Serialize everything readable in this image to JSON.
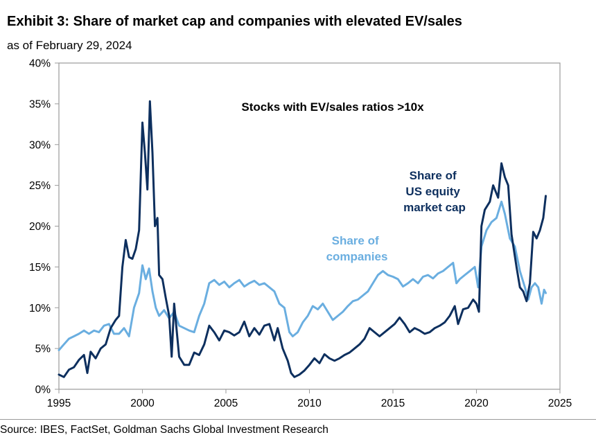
{
  "header": {
    "title": "Exhibit 3: Share of market cap and companies with elevated EV/sales",
    "subtitle": "as of February 29, 2024"
  },
  "footer": {
    "source": "Source: IBES, FactSet, Goldman Sachs Global Investment Research"
  },
  "colors": {
    "market_cap": "#0d2f5e",
    "companies": "#6aaee0",
    "frame": "#9a9a9a"
  },
  "chart_data": {
    "type": "line",
    "title": "Stocks with EV/sales ratios >10x",
    "xlabel": "",
    "ylabel": "",
    "xlim": [
      1995,
      2025
    ],
    "ylim": [
      0,
      40
    ],
    "x_ticks": [
      "1995",
      "2000",
      "2005",
      "2010",
      "2015",
      "2020",
      "2025"
    ],
    "y_ticks": [
      "0%",
      "5%",
      "10%",
      "15%",
      "20%",
      "25%",
      "30%",
      "35%",
      "40%"
    ],
    "grid": false,
    "legend": "inline labels",
    "series": [
      {
        "name": "Share of US equity market cap",
        "label_lines": [
          "Share of",
          "US equity",
          "market cap"
        ],
        "points": [
          [
            1995.0,
            1.8
          ],
          [
            1995.3,
            1.5
          ],
          [
            1995.6,
            2.4
          ],
          [
            1995.9,
            2.7
          ],
          [
            1996.2,
            3.6
          ],
          [
            1996.5,
            4.2
          ],
          [
            1996.7,
            2.0
          ],
          [
            1996.9,
            4.6
          ],
          [
            1997.2,
            3.8
          ],
          [
            1997.5,
            5.0
          ],
          [
            1997.8,
            5.5
          ],
          [
            1998.1,
            7.5
          ],
          [
            1998.4,
            8.5
          ],
          [
            1998.6,
            9.0
          ],
          [
            1998.8,
            15.0
          ],
          [
            1999.0,
            18.3
          ],
          [
            1999.2,
            16.2
          ],
          [
            1999.4,
            16.0
          ],
          [
            1999.6,
            17.2
          ],
          [
            1999.8,
            19.5
          ],
          [
            2000.0,
            32.7
          ],
          [
            2000.15,
            29.0
          ],
          [
            2000.3,
            24.5
          ],
          [
            2000.45,
            35.3
          ],
          [
            2000.6,
            29.0
          ],
          [
            2000.75,
            20.0
          ],
          [
            2000.9,
            21.0
          ],
          [
            2001.0,
            14.0
          ],
          [
            2001.2,
            13.5
          ],
          [
            2001.4,
            11.2
          ],
          [
            2001.6,
            9.0
          ],
          [
            2001.75,
            4.0
          ],
          [
            2001.9,
            10.5
          ],
          [
            2002.2,
            4.0
          ],
          [
            2002.5,
            3.0
          ],
          [
            2002.8,
            3.0
          ],
          [
            2003.1,
            4.5
          ],
          [
            2003.4,
            4.2
          ],
          [
            2003.7,
            5.5
          ],
          [
            2004.0,
            7.8
          ],
          [
            2004.3,
            7.0
          ],
          [
            2004.6,
            6.0
          ],
          [
            2004.9,
            7.2
          ],
          [
            2005.2,
            7.0
          ],
          [
            2005.5,
            6.6
          ],
          [
            2005.8,
            7.0
          ],
          [
            2006.1,
            8.3
          ],
          [
            2006.4,
            6.5
          ],
          [
            2006.7,
            7.5
          ],
          [
            2007.0,
            6.7
          ],
          [
            2007.3,
            7.8
          ],
          [
            2007.6,
            8.0
          ],
          [
            2007.9,
            6.0
          ],
          [
            2008.1,
            7.5
          ],
          [
            2008.4,
            5.0
          ],
          [
            2008.7,
            3.5
          ],
          [
            2008.9,
            2.0
          ],
          [
            2009.1,
            1.5
          ],
          [
            2009.4,
            1.8
          ],
          [
            2009.7,
            2.3
          ],
          [
            2010.0,
            3.0
          ],
          [
            2010.3,
            3.8
          ],
          [
            2010.6,
            3.2
          ],
          [
            2010.9,
            4.3
          ],
          [
            2011.2,
            3.8
          ],
          [
            2011.5,
            3.5
          ],
          [
            2011.8,
            3.8
          ],
          [
            2012.1,
            4.2
          ],
          [
            2012.4,
            4.5
          ],
          [
            2012.7,
            5.0
          ],
          [
            2013.0,
            5.5
          ],
          [
            2013.3,
            6.2
          ],
          [
            2013.6,
            7.5
          ],
          [
            2013.9,
            7.0
          ],
          [
            2014.2,
            6.5
          ],
          [
            2014.5,
            7.0
          ],
          [
            2014.8,
            7.5
          ],
          [
            2015.1,
            8.0
          ],
          [
            2015.4,
            8.8
          ],
          [
            2015.7,
            8.0
          ],
          [
            2016.0,
            7.0
          ],
          [
            2016.3,
            7.5
          ],
          [
            2016.6,
            7.2
          ],
          [
            2016.9,
            6.8
          ],
          [
            2017.2,
            7.0
          ],
          [
            2017.5,
            7.5
          ],
          [
            2017.8,
            7.8
          ],
          [
            2018.1,
            8.2
          ],
          [
            2018.4,
            9.0
          ],
          [
            2018.7,
            10.2
          ],
          [
            2018.9,
            8.0
          ],
          [
            2019.2,
            9.8
          ],
          [
            2019.5,
            10.0
          ],
          [
            2019.8,
            11.0
          ],
          [
            2020.0,
            10.5
          ],
          [
            2020.15,
            9.5
          ],
          [
            2020.3,
            20.0
          ],
          [
            2020.5,
            22.0
          ],
          [
            2020.8,
            23.0
          ],
          [
            2021.0,
            25.0
          ],
          [
            2021.3,
            23.5
          ],
          [
            2021.5,
            27.7
          ],
          [
            2021.7,
            26.0
          ],
          [
            2021.9,
            25.0
          ],
          [
            2022.1,
            19.0
          ],
          [
            2022.4,
            15.0
          ],
          [
            2022.6,
            12.5
          ],
          [
            2022.8,
            12.0
          ],
          [
            2023.0,
            10.8
          ],
          [
            2023.2,
            13.0
          ],
          [
            2023.4,
            19.3
          ],
          [
            2023.6,
            18.5
          ],
          [
            2023.8,
            19.5
          ],
          [
            2024.0,
            21.0
          ],
          [
            2024.15,
            23.7
          ]
        ]
      },
      {
        "name": "Share of companies",
        "label_lines": [
          "Share of",
          "companies"
        ],
        "points": [
          [
            1995.0,
            4.8
          ],
          [
            1995.3,
            5.5
          ],
          [
            1995.6,
            6.2
          ],
          [
            1995.9,
            6.5
          ],
          [
            1996.2,
            6.8
          ],
          [
            1996.5,
            7.2
          ],
          [
            1996.8,
            6.8
          ],
          [
            1997.1,
            7.2
          ],
          [
            1997.4,
            7.0
          ],
          [
            1997.7,
            7.8
          ],
          [
            1998.0,
            8.0
          ],
          [
            1998.3,
            6.8
          ],
          [
            1998.6,
            6.8
          ],
          [
            1998.9,
            7.5
          ],
          [
            1999.2,
            6.5
          ],
          [
            1999.5,
            10.0
          ],
          [
            1999.8,
            11.8
          ],
          [
            2000.0,
            15.2
          ],
          [
            2000.2,
            13.5
          ],
          [
            2000.4,
            14.8
          ],
          [
            2000.6,
            12.0
          ],
          [
            2000.8,
            10.0
          ],
          [
            2001.0,
            9.0
          ],
          [
            2001.3,
            9.7
          ],
          [
            2001.6,
            8.7
          ],
          [
            2001.9,
            9.5
          ],
          [
            2002.2,
            7.8
          ],
          [
            2002.5,
            7.5
          ],
          [
            2002.8,
            7.2
          ],
          [
            2003.1,
            7.0
          ],
          [
            2003.4,
            9.0
          ],
          [
            2003.7,
            10.5
          ],
          [
            2004.0,
            13.0
          ],
          [
            2004.3,
            13.4
          ],
          [
            2004.6,
            12.8
          ],
          [
            2004.9,
            13.2
          ],
          [
            2005.2,
            12.5
          ],
          [
            2005.5,
            13.0
          ],
          [
            2005.8,
            13.4
          ],
          [
            2006.1,
            12.6
          ],
          [
            2006.4,
            13.0
          ],
          [
            2006.7,
            13.3
          ],
          [
            2007.0,
            12.8
          ],
          [
            2007.3,
            13.0
          ],
          [
            2007.6,
            12.5
          ],
          [
            2007.9,
            12.0
          ],
          [
            2008.2,
            10.5
          ],
          [
            2008.5,
            10.0
          ],
          [
            2008.8,
            7.0
          ],
          [
            2009.0,
            6.5
          ],
          [
            2009.3,
            7.0
          ],
          [
            2009.6,
            8.2
          ],
          [
            2009.9,
            9.0
          ],
          [
            2010.2,
            10.2
          ],
          [
            2010.5,
            9.8
          ],
          [
            2010.8,
            10.5
          ],
          [
            2011.1,
            9.5
          ],
          [
            2011.4,
            8.5
          ],
          [
            2011.7,
            9.0
          ],
          [
            2012.0,
            9.5
          ],
          [
            2012.3,
            10.2
          ],
          [
            2012.6,
            10.8
          ],
          [
            2012.9,
            11.0
          ],
          [
            2013.2,
            11.5
          ],
          [
            2013.5,
            12.0
          ],
          [
            2013.8,
            13.0
          ],
          [
            2014.1,
            14.0
          ],
          [
            2014.4,
            14.5
          ],
          [
            2014.7,
            14.0
          ],
          [
            2015.0,
            13.8
          ],
          [
            2015.3,
            13.5
          ],
          [
            2015.6,
            12.6
          ],
          [
            2015.9,
            13.0
          ],
          [
            2016.2,
            13.5
          ],
          [
            2016.5,
            13.0
          ],
          [
            2016.8,
            13.8
          ],
          [
            2017.1,
            14.0
          ],
          [
            2017.4,
            13.6
          ],
          [
            2017.7,
            14.2
          ],
          [
            2018.0,
            14.5
          ],
          [
            2018.3,
            15.0
          ],
          [
            2018.6,
            15.5
          ],
          [
            2018.8,
            13.0
          ],
          [
            2019.0,
            13.5
          ],
          [
            2019.3,
            14.0
          ],
          [
            2019.6,
            14.5
          ],
          [
            2019.9,
            15.0
          ],
          [
            2020.1,
            12.5
          ],
          [
            2020.3,
            17.5
          ],
          [
            2020.6,
            19.5
          ],
          [
            2020.9,
            20.5
          ],
          [
            2021.2,
            21.0
          ],
          [
            2021.5,
            23.0
          ],
          [
            2021.7,
            21.5
          ],
          [
            2022.0,
            18.5
          ],
          [
            2022.3,
            17.5
          ],
          [
            2022.6,
            14.5
          ],
          [
            2022.9,
            12.5
          ],
          [
            2023.1,
            11.0
          ],
          [
            2023.3,
            12.5
          ],
          [
            2023.5,
            13.0
          ],
          [
            2023.7,
            12.5
          ],
          [
            2023.9,
            10.5
          ],
          [
            2024.05,
            12.2
          ],
          [
            2024.15,
            11.8
          ]
        ]
      }
    ]
  }
}
